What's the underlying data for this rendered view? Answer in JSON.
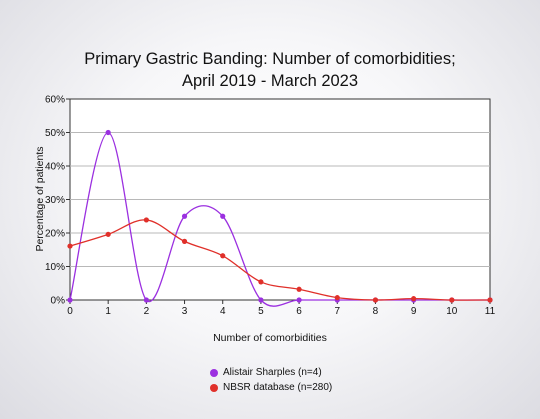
{
  "chart_data": {
    "type": "line",
    "title_line1": "Primary Gastric Banding: Number of comorbidities;",
    "title_line2": "April 2019 - March 2023",
    "xlabel": "Number of comorbidities",
    "ylabel": "Percentage of patients",
    "x": [
      0,
      1,
      2,
      3,
      4,
      5,
      6,
      7,
      8,
      9,
      10,
      11
    ],
    "ylim": [
      0,
      60
    ],
    "yticks": [
      "0%",
      "10%",
      "20%",
      "30%",
      "40%",
      "50%",
      "60%"
    ],
    "grid": true,
    "legend_position": "bottom",
    "series": [
      {
        "name": "Alistair Sharples (n=4)",
        "color": "#9b30e0",
        "values": [
          0,
          50,
          0,
          25,
          25,
          0,
          0,
          0,
          0,
          0,
          0,
          0
        ]
      },
      {
        "name": "NBSR database (n=280)",
        "color": "#e0302a",
        "values": [
          16.1,
          19.6,
          23.9,
          17.5,
          13.2,
          5.4,
          3.2,
          0.7,
          0,
          0.4,
          0,
          0
        ]
      }
    ]
  }
}
